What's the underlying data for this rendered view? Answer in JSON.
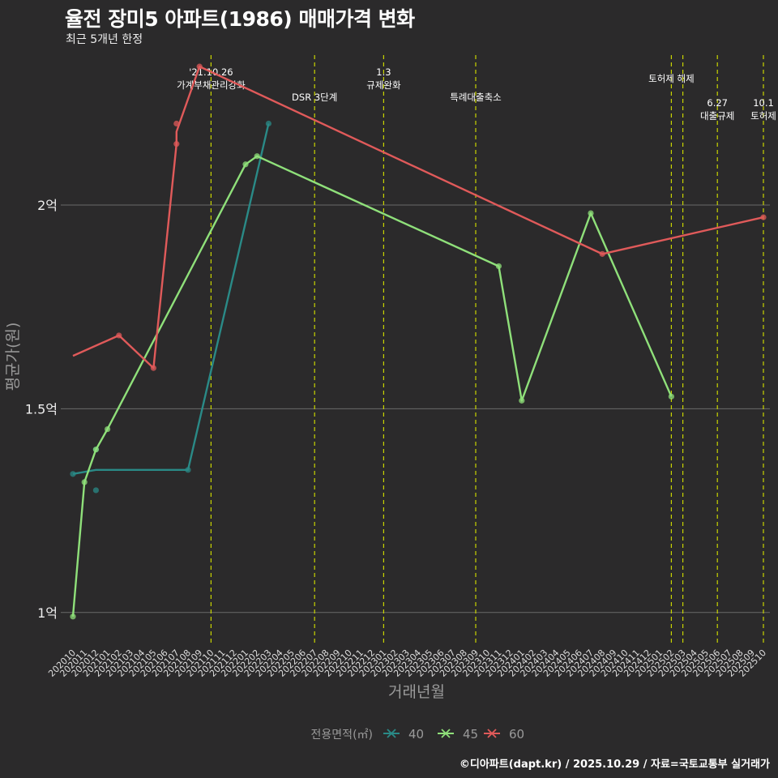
{
  "title": "율전 장미5 아파트(1986) 매매가격 변화",
  "subtitle": "최근 5개년 한정",
  "caption": "©디아파트(dapt.kr) / 2025.10.29 / 자료=국토교통부 실거래가",
  "colors": {
    "background": "#2b2a2b",
    "grid": "#6a6a6a",
    "event_line": "#c8d400",
    "series_40": "#2a8a87",
    "series_45": "#8fe07a",
    "series_60": "#e05a5a"
  },
  "chart_data": {
    "type": "line",
    "xlabel": "거래년월",
    "ylabel": "평균가(원)",
    "ylim": [
      0.92,
      2.38
    ],
    "yticks": [
      {
        "value": 1.0,
        "label": "1억"
      },
      {
        "value": 1.5,
        "label": "1.5억"
      },
      {
        "value": 2.0,
        "label": "2억"
      }
    ],
    "months": [
      "202010",
      "202011",
      "202012",
      "202101",
      "202102",
      "202103",
      "202104",
      "202105",
      "202106",
      "202107",
      "202108",
      "202109",
      "202110",
      "202111",
      "202112",
      "202201",
      "202202",
      "202203",
      "202204",
      "202205",
      "202206",
      "202207",
      "202208",
      "202209",
      "202210",
      "202211",
      "202212",
      "202301",
      "202302",
      "202303",
      "202304",
      "202305",
      "202306",
      "202307",
      "202308",
      "202309",
      "202310",
      "202311",
      "202312",
      "202401",
      "202402",
      "202403",
      "202404",
      "202405",
      "202406",
      "202407",
      "202408",
      "202409",
      "202410",
      "202411",
      "202412",
      "202501",
      "202502",
      "202503",
      "202504",
      "202505",
      "202506",
      "202507",
      "202508",
      "202509",
      "202510"
    ],
    "legend_title": "전용면적(㎡)",
    "series": [
      {
        "name": "40",
        "color": "#2a8a87",
        "line": [
          [
            "202010",
            1.34
          ],
          [
            "202012",
            1.35
          ],
          [
            "202108",
            1.35
          ],
          [
            "202203",
            2.2
          ]
        ],
        "points": [
          [
            "202010",
            1.34
          ],
          [
            "202012",
            1.4
          ],
          [
            "202012",
            1.3
          ],
          [
            "202108",
            1.35
          ],
          [
            "202203",
            2.2
          ]
        ]
      },
      {
        "name": "45",
        "color": "#8fe07a",
        "line": [
          [
            "202010",
            0.99
          ],
          [
            "202011",
            1.32
          ],
          [
            "202012",
            1.4
          ],
          [
            "202101",
            1.45
          ],
          [
            "202201",
            2.1
          ],
          [
            "202202",
            2.12
          ],
          [
            "202311",
            1.85
          ],
          [
            "202401",
            1.52
          ],
          [
            "202407",
            1.98
          ],
          [
            "202502",
            1.53
          ]
        ],
        "points": [
          [
            "202010",
            0.99
          ],
          [
            "202011",
            1.32
          ],
          [
            "202012",
            1.4
          ],
          [
            "202101",
            1.45
          ],
          [
            "202201",
            2.1
          ],
          [
            "202202",
            2.12
          ],
          [
            "202311",
            1.85
          ],
          [
            "202401",
            1.52
          ],
          [
            "202407",
            1.98
          ],
          [
            "202502",
            1.53
          ]
        ]
      },
      {
        "name": "60",
        "color": "#e05a5a",
        "line": [
          [
            "202010",
            1.63
          ],
          [
            "202102",
            1.68
          ],
          [
            "202105",
            1.6
          ],
          [
            "202107",
            2.15
          ],
          [
            "202107",
            2.18
          ],
          [
            "202109",
            2.34
          ],
          [
            "202408",
            1.88
          ],
          [
            "202510",
            1.97
          ]
        ],
        "points": [
          [
            "202102",
            1.68
          ],
          [
            "202105",
            1.6
          ],
          [
            "202107",
            2.15
          ],
          [
            "202107",
            2.2
          ],
          [
            "202109",
            2.34
          ],
          [
            "202408",
            1.88
          ],
          [
            "202510",
            1.97
          ]
        ]
      }
    ],
    "events": [
      {
        "month": "202110",
        "lines": [
          "'21.10.26",
          "가계부채관리강화"
        ],
        "tier": 0
      },
      {
        "month": "202207",
        "lines": [
          "DSR 3단계"
        ],
        "tier": 2
      },
      {
        "month": "202301",
        "lines": [
          "1.3",
          "규제완화"
        ],
        "tier": 0
      },
      {
        "month": "202309",
        "lines": [
          "특례대출축소"
        ],
        "tier": 2
      },
      {
        "month": "202502",
        "lines": [
          "토허제 해제"
        ],
        "tier": 1
      },
      {
        "month": "202503",
        "lines": [],
        "tier": 1
      },
      {
        "month": "202506",
        "lines": [
          "6.27",
          "대출규제"
        ],
        "tier": 3
      },
      {
        "month": "202510",
        "lines": [
          "10.1",
          "토허제"
        ],
        "tier": 3
      }
    ]
  }
}
